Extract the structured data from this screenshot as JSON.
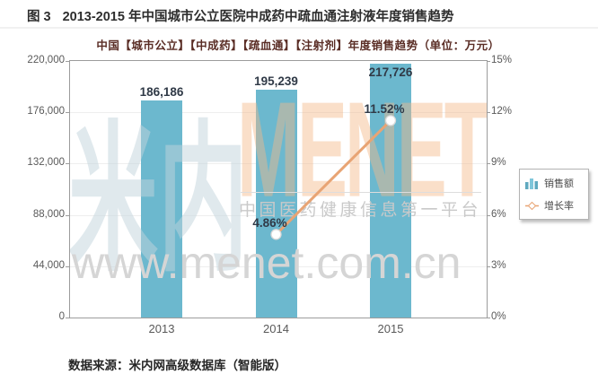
{
  "figure": {
    "caption_label": "图 3",
    "caption_title": "2013-2015 年中国城市公立医院中成药中疏血通注射液年度销售趋势",
    "source": "数据来源：米内网高级数据库（智能版）"
  },
  "chart_data": {
    "type": "bar",
    "title": "中国【城市公立】【中成药】【疏血通】【注射剂】年度销售趋势（单位：万元）",
    "categories": [
      "2013",
      "2014",
      "2015"
    ],
    "series": [
      {
        "name": "销售额",
        "type": "bar",
        "axis": "left",
        "values": [
          186186,
          195239,
          217726
        ],
        "labels": [
          "186,186",
          "195,239",
          "217,726"
        ],
        "color": "#6cb8ce"
      },
      {
        "name": "增长率",
        "type": "line",
        "axis": "right",
        "values": [
          null,
          4.86,
          11.52
        ],
        "labels": [
          null,
          "4.86%",
          "11.52%"
        ],
        "color": "#e8a474"
      }
    ],
    "left_axis": {
      "min": 0,
      "max": 220000,
      "tick_step": 44000,
      "tick_labels": [
        "0",
        "44,000",
        "88,000",
        "132,000",
        "176,000",
        "220,000"
      ]
    },
    "right_axis": {
      "min": 0,
      "max": 15,
      "tick_step": 3,
      "tick_labels": [
        "0%",
        "3%",
        "6%",
        "9%",
        "12%",
        "15%"
      ]
    },
    "grid": true,
    "legend_position": "right-middle"
  },
  "watermark": {
    "logo_cn": "米内",
    "logo_en": "MENET",
    "tagline": "中国医药健康信息第一平台",
    "url": "www.menet.com.cn"
  },
  "colors": {
    "bar": "#6cb8ce",
    "line": "#e8a474",
    "marker_fill": "#ffffff",
    "marker_stroke": "#d9d9d9",
    "subtitle_text": "#5a2d25",
    "axis_text": "#595959",
    "value_label_text": "#303a47",
    "plot_border": "#9c9c9c",
    "grid": "#eeeeee"
  }
}
